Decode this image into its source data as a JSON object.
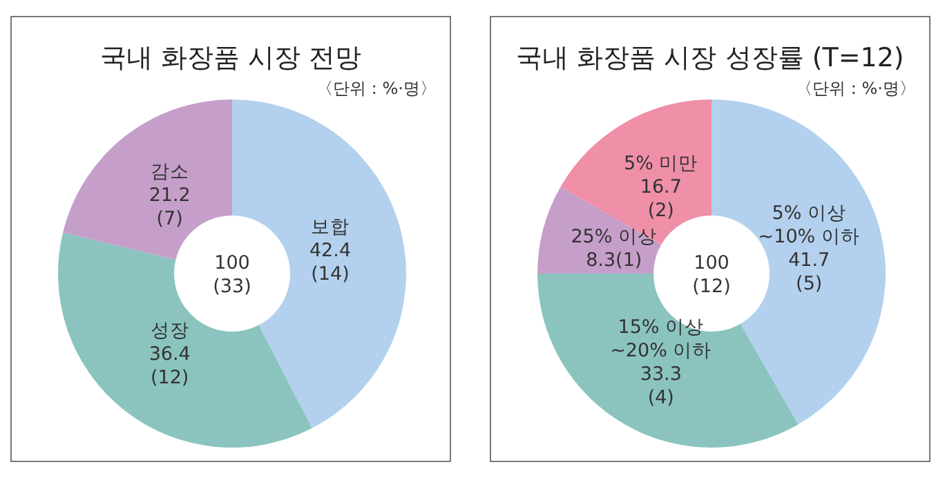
{
  "chart_data": [
    {
      "type": "donut",
      "title": "국내 화장품 시장 전망",
      "subtitle": "〈단위 : %·명〉",
      "categories": [
        "보합",
        "성장",
        "감소"
      ],
      "values": [
        42.4,
        36.4,
        21.2
      ],
      "value_labels": [
        "42.4\n(14)",
        "36.4\n(12)",
        "21.2\n(7)"
      ],
      "colors": [
        "#b3d1ee",
        "#8bc4bf",
        "#c59fca"
      ],
      "annotations": [
        "100\n(33)"
      ]
    },
    {
      "type": "donut",
      "title": "국내 화장품 시장 성장률 (T=12)",
      "subtitle": "〈단위 : %·명〉",
      "categories": [
        "5% 이상\n~10% 이하",
        "15% 이상\n~20% 이하",
        "25% 이상",
        "5% 미만"
      ],
      "values": [
        41.7,
        33.3,
        8.3,
        16.7
      ],
      "value_labels": [
        "41.7\n(5)",
        "33.3\n(4)",
        "8.3(1)",
        "16.7\n(2)"
      ],
      "colors": [
        "#b3d1ee",
        "#8bc4bf",
        "#c59fca",
        "#f08fa8"
      ],
      "annotations": [
        "100\n(12)"
      ]
    }
  ]
}
